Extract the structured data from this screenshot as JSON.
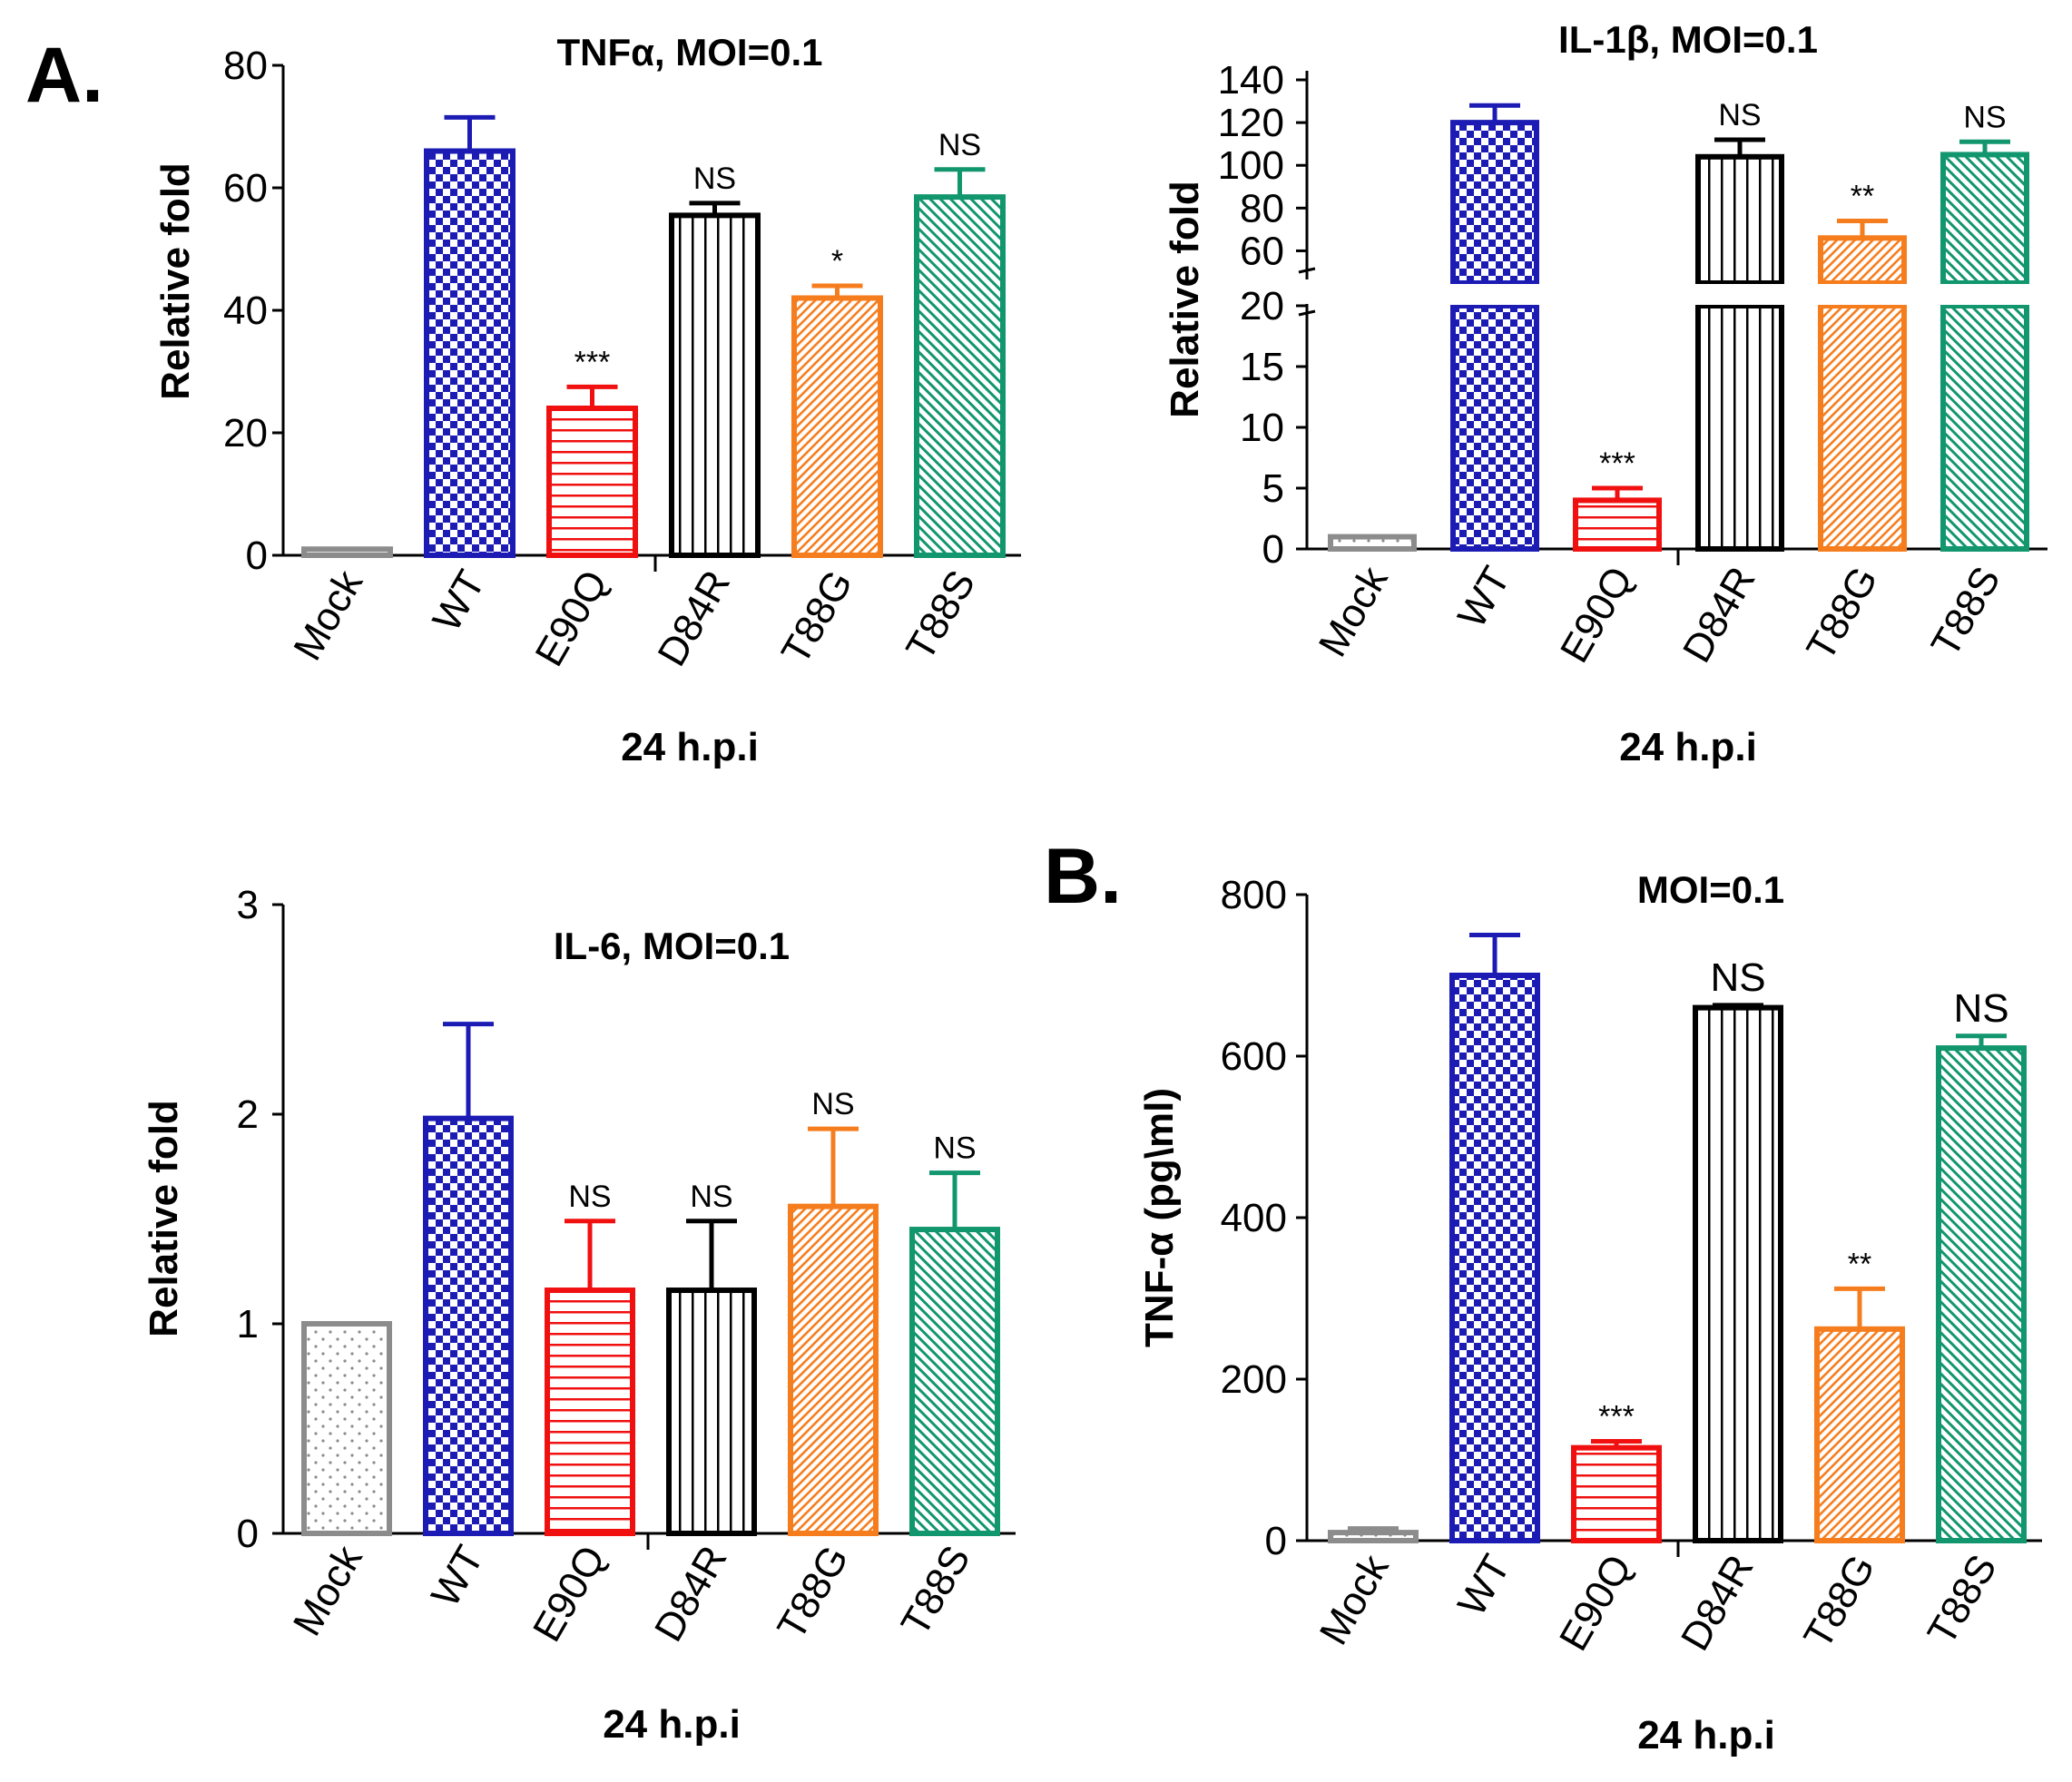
{
  "panel_letters": {
    "a": "A.",
    "b": "B."
  },
  "chart_data": [
    {
      "id": "tnfa",
      "type": "bar",
      "title": "TNFα, MOI=0.1",
      "ylabel": "Relative fold",
      "xlabel": "24 h.p.i",
      "categories": [
        "Mock",
        "WT",
        "E90Q",
        "D84R",
        "T88G",
        "T88S"
      ],
      "values": [
        1,
        66,
        24,
        55.5,
        42,
        58.5
      ],
      "errors": [
        0,
        5.5,
        3.5,
        2,
        2,
        4.5
      ],
      "significance": [
        "",
        "",
        "***",
        "NS",
        "*",
        "NS"
      ],
      "ylim": [
        0,
        80
      ],
      "yticks": [
        "0",
        "20",
        "40",
        "60",
        "80"
      ]
    },
    {
      "id": "il1b",
      "type": "bar",
      "title": "IL-1β, MOI=0.1",
      "ylabel": "Relative fold",
      "xlabel": "24 h.p.i",
      "categories": [
        "Mock",
        "WT",
        "E90Q",
        "D84R",
        "T88G",
        "T88S"
      ],
      "values": [
        1,
        120,
        4,
        104,
        66,
        105
      ],
      "errors": [
        0,
        8,
        1,
        8,
        8,
        6
      ],
      "significance": [
        "",
        "",
        "***",
        "NS",
        "**",
        "NS"
      ],
      "axis_break": {
        "lower": [
          0,
          20
        ],
        "upper": [
          50,
          140
        ]
      },
      "yticks_lower": [
        "0",
        "5",
        "10",
        "15",
        "20"
      ],
      "yticks_upper": [
        "60",
        "80",
        "100",
        "120",
        "140"
      ]
    },
    {
      "id": "il6",
      "type": "bar",
      "title": "IL-6, MOI=0.1",
      "ylabel": "Relative fold",
      "xlabel": "24 h.p.i",
      "categories": [
        "Mock",
        "WT",
        "E90Q",
        "D84R",
        "T88G",
        "T88S"
      ],
      "values": [
        1,
        1.98,
        1.16,
        1.16,
        1.56,
        1.45
      ],
      "errors": [
        0,
        0.45,
        0.33,
        0.33,
        0.37,
        0.27
      ],
      "significance": [
        "",
        "",
        "NS",
        "NS",
        "NS",
        "NS"
      ],
      "ylim": [
        0,
        3
      ],
      "yticks": [
        "0",
        "1",
        "2",
        "3"
      ]
    },
    {
      "id": "tnfa_elisa",
      "type": "bar",
      "title": "MOI=0.1",
      "ylabel": "TNF-α (pg\\ml)",
      "xlabel": "24 h.p.i",
      "categories": [
        "Mock",
        "WT",
        "E90Q",
        "D84R",
        "T88G",
        "T88S"
      ],
      "values": [
        10,
        700,
        115,
        660,
        262,
        610
      ],
      "errors": [
        5,
        50,
        8,
        3,
        50,
        15
      ],
      "significance": [
        "",
        "",
        "***",
        "NS",
        "**",
        "NS"
      ],
      "ylim": [
        0,
        800
      ],
      "yticks": [
        "0",
        "200",
        "400",
        "600",
        "800"
      ]
    }
  ],
  "colors": {
    "mock": "#8c8c8c",
    "wt": "#1c1cb4",
    "e90q": "#f01010",
    "d84r": "#000000",
    "t88g": "#f57d1e",
    "t88s": "#12966e"
  }
}
